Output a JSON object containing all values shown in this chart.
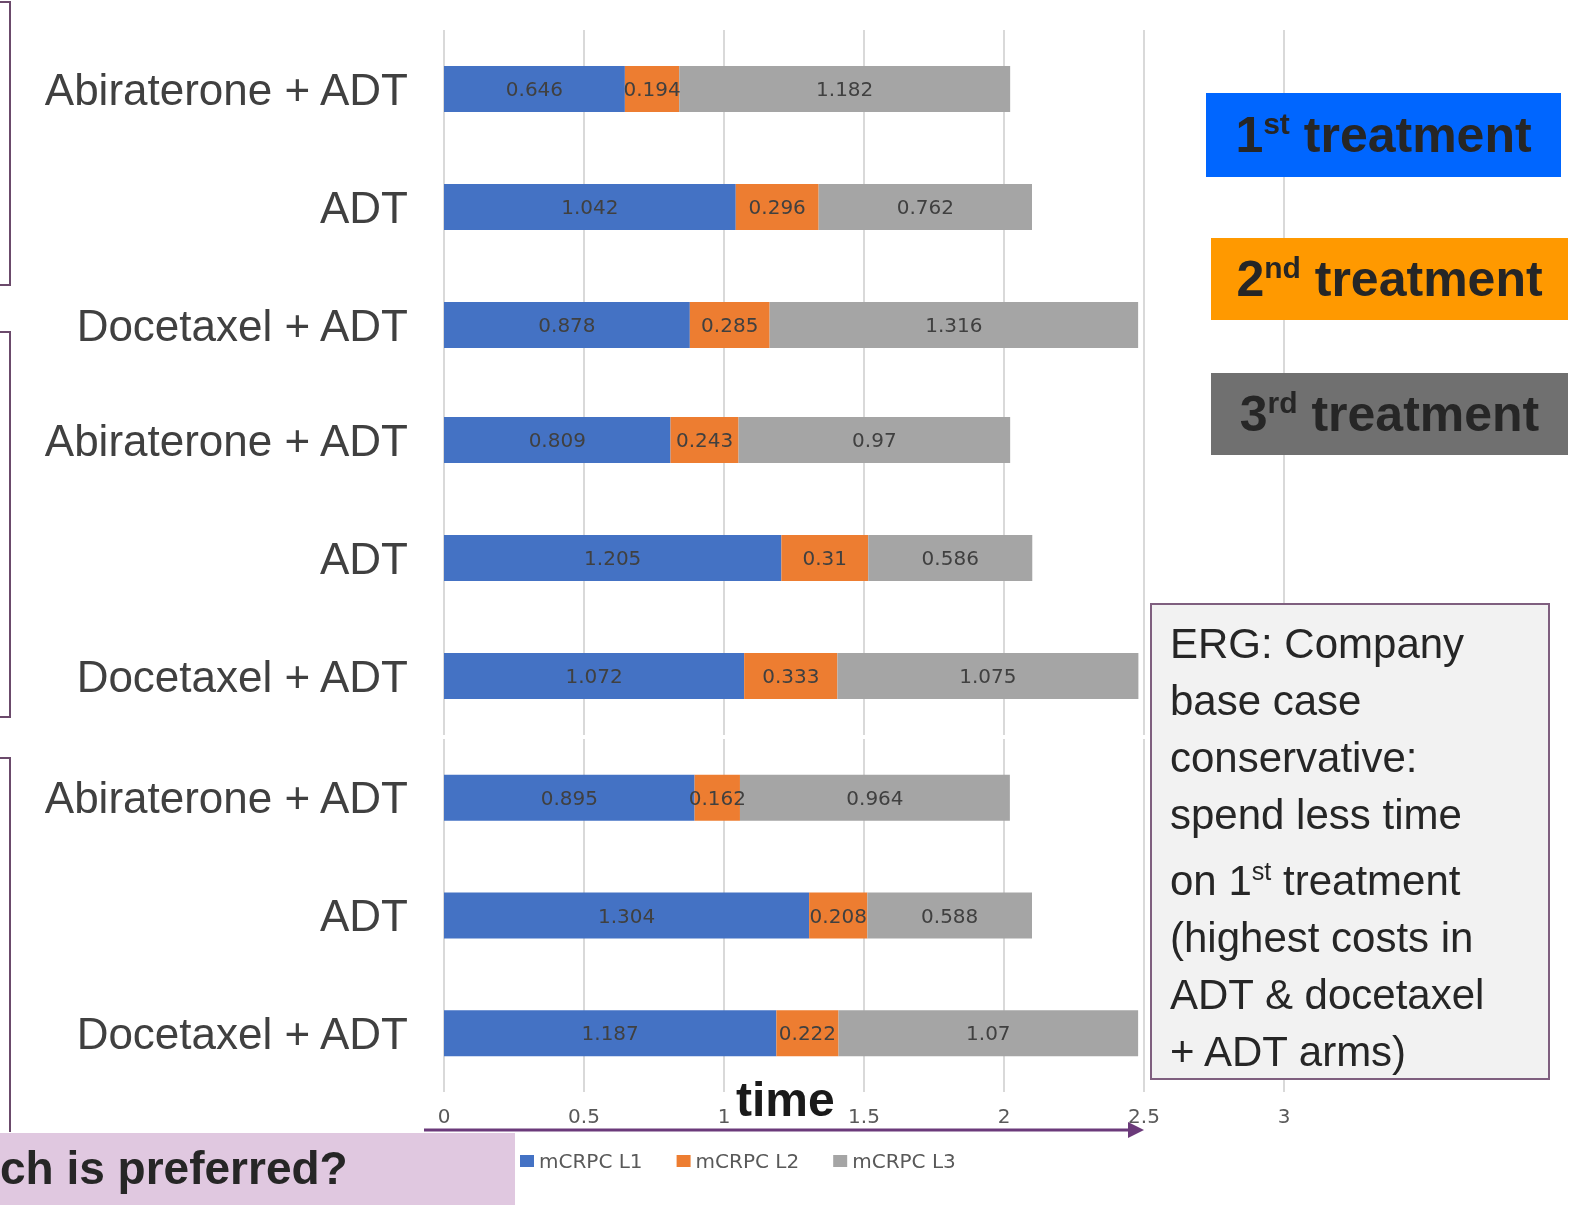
{
  "chart_data": [
    {
      "type": "bar",
      "orientation": "horizontal",
      "stacked": true,
      "data_labels": true,
      "grid": "x",
      "tick_labels": "y",
      "xlim": [
        0,
        3
      ],
      "xticks": [
        0,
        0.5,
        1,
        1.5,
        2,
        2.5,
        3
      ],
      "categories": [
        "Abiraterone + ADT",
        "ADT",
        "Docetaxel + ADT"
      ],
      "series": [
        {
          "color": "#4472c4",
          "values": [
            0.646,
            1.042,
            0.878
          ]
        },
        {
          "color": "#ed7d31",
          "values": [
            0.194,
            0.296,
            0.285
          ]
        },
        {
          "color": "#a5a5a5",
          "values": [
            1.182,
            0.762,
            1.316
          ]
        }
      ],
      "annotations": [
        "1$^{st}$ treatment",
        "2$^{nd}$ treatment",
        "3$^{rd}$ treatment"
      ]
    },
    {
      "type": "bar",
      "orientation": "horizontal",
      "stacked": true,
      "data_labels": true,
      "grid": "x",
      "tick_labels": "y",
      "xlim": [
        0,
        3
      ],
      "xticks": [
        0,
        0.5,
        1,
        1.5,
        2,
        2.5,
        3
      ],
      "categories": [
        "Abiraterone + ADT",
        "ADT",
        "Docetaxel + ADT"
      ],
      "series": [
        {
          "color": "#4472c4",
          "values": [
            0.809,
            1.205,
            1.072
          ]
        },
        {
          "color": "#ed7d31",
          "values": [
            0.243,
            0.31,
            0.333
          ]
        },
        {
          "color": "#a5a5a5",
          "values": [
            0.97,
            0.586,
            1.075
          ]
        }
      ]
    },
    {
      "type": "bar",
      "orientation": "horizontal",
      "stacked": true,
      "data_labels": true,
      "grid": "x",
      "legend": "bottom",
      "xlabel": "time",
      "xlim": [
        0,
        3
      ],
      "xticks": [
        0,
        0.5,
        1,
        1.5,
        2,
        2.5,
        3
      ],
      "categories": [
        "Abiraterone + ADT",
        "ADT",
        "Docetaxel + ADT"
      ],
      "series": [
        {
          "name": "mCRPC L1",
          "color": "#4472c4",
          "values": [
            0.895,
            1.304,
            1.187
          ]
        },
        {
          "name": "mCRPC L2",
          "color": "#ed7d31",
          "values": [
            0.162,
            0.208,
            0.222
          ]
        },
        {
          "name": "mCRPC L3",
          "color": "#a5a5a5",
          "values": [
            0.964,
            0.588,
            1.07
          ]
        }
      ],
      "annotations": [
        "ERG: Company base case conservative: spend less time on 1$^{st}$ treatment (highest costs in ADT & docetaxel + ADT arms)",
        "ch is preferred?"
      ]
    }
  ]
}
